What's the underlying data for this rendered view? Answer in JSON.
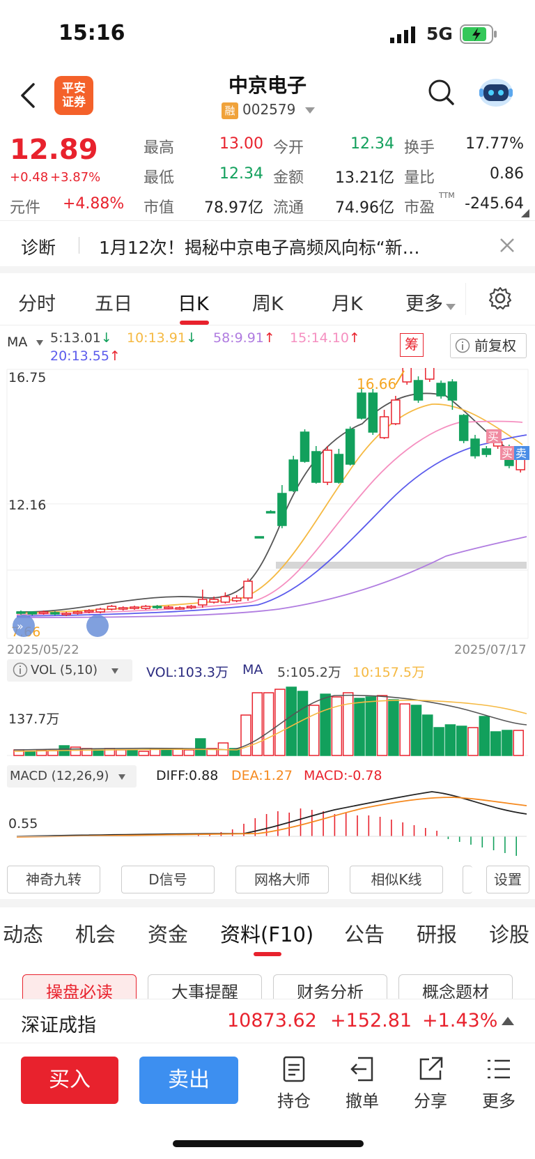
{
  "status": {
    "time": "15:16",
    "network": "5G"
  },
  "header": {
    "logo_text": "平安\n证券",
    "logo_line1": "平安",
    "logo_line2": "证券",
    "name": "中京电子",
    "badge": "融",
    "code": "002579"
  },
  "quote": {
    "price": "12.89",
    "change": "+0.48",
    "change_pct": "+3.87%",
    "sector_label": "元件",
    "sector_pct": "+4.88%",
    "high_label": "最高",
    "high": "13.00",
    "low_label": "最低",
    "low": "12.34",
    "mcap_label": "市值",
    "mcap": "78.97亿",
    "open_label": "今开",
    "open": "12.34",
    "amount_label": "金额",
    "amount": "13.21亿",
    "float_label": "流通",
    "float": "74.96亿",
    "turnover_label": "换手",
    "turnover": "17.77%",
    "vratio_label": "量比",
    "vratio": "0.86",
    "pe_label": "市盈",
    "pe_sup": "TTM",
    "pe": "-245.64"
  },
  "diagnosis": {
    "label": "诊断",
    "text": "1月12次！揭秘中京电子高频风向标“新…"
  },
  "chart_tabs": [
    "分时",
    "五日",
    "日K",
    "周K",
    "月K",
    "更多"
  ],
  "ma": {
    "label": "MA",
    "ma5": "5:13.01",
    "ma10": "10:13.91",
    "ma58": "58:9.91",
    "ma15": "15:14.10",
    "ma20": "20:13.55",
    "chip_btn": "筹",
    "adjust_btn": "前复权"
  },
  "kchart": {
    "y_top": "16.75",
    "y_mid": "12.16",
    "y_low": "7.66",
    "date_start": "2025/05/22",
    "date_end": "2025/07/17",
    "peak_label": "16.66",
    "buy_mark": "买",
    "sell_mark": "卖",
    "colors": {
      "up": "#e8222d",
      "down": "#12a05c",
      "ma5": "#555555",
      "ma10": "#f5b942",
      "ma15": "#f58fc0",
      "ma20": "#5b5bec",
      "ma58": "#b07ce0"
    }
  },
  "volume": {
    "label": "VOL (5,10)",
    "vol": "VOL:103.3万",
    "ma_label": "MA",
    "ma5": "5:105.2万",
    "ma10": "10:157.5万",
    "y_label": "137.7万"
  },
  "macd": {
    "label": "MACD (12,26,9)",
    "diff": "DIFF:0.88",
    "dea": "DEA:1.27",
    "macd": "MACD:-0.78",
    "y_label": "0.55"
  },
  "tools": [
    "神奇九转",
    "D信号",
    "网格大师",
    "相似K线",
    "设置"
  ],
  "f10_tabs": [
    "动态",
    "机会",
    "资金",
    "资料(F10)",
    "公告",
    "研报",
    "诊股"
  ],
  "sub_buttons": [
    "操盘必读",
    "大事提醒",
    "财务分析",
    "概念题材"
  ],
  "index": {
    "name": "深证成指",
    "value": "10873.62",
    "change": "+152.81",
    "pct": "+1.43%"
  },
  "bottom": {
    "buy": "买入",
    "sell": "卖出",
    "hold": "持仓",
    "cancel": "撤单",
    "share": "分享",
    "more": "更多"
  }
}
